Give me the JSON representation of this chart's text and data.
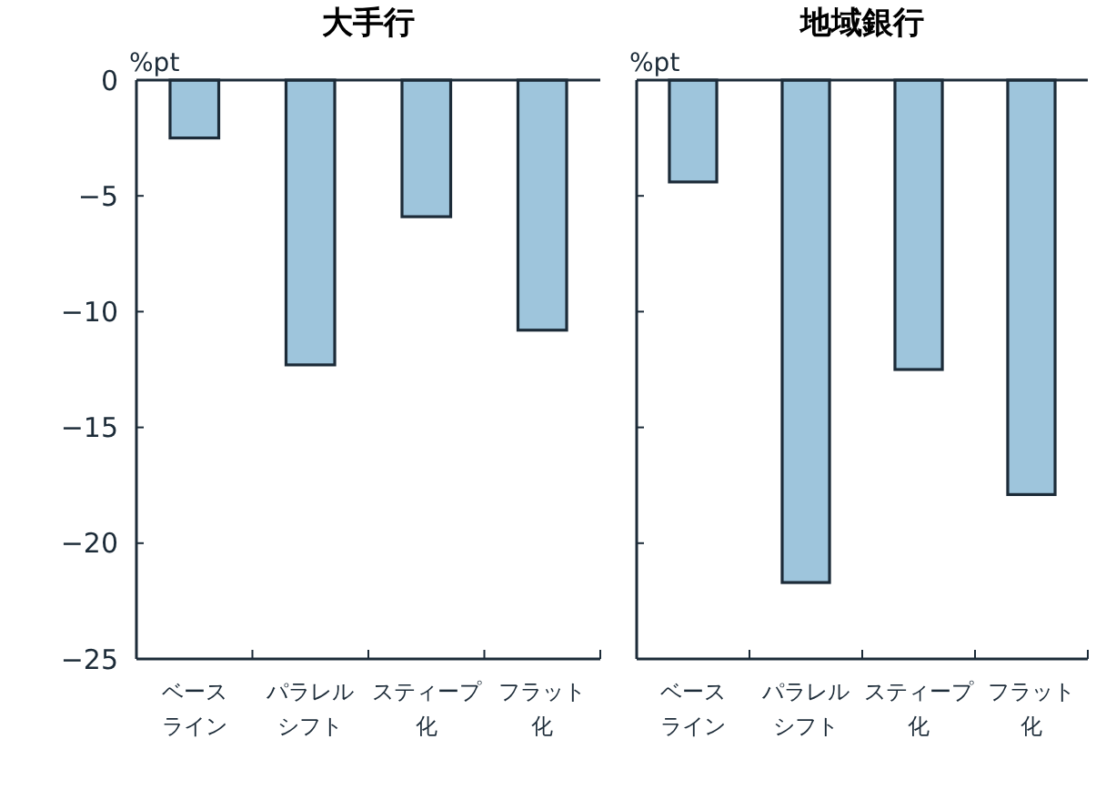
{
  "chart_data": [
    {
      "type": "bar",
      "title": "大手行",
      "ylabel": "%pt",
      "categories": [
        "ベースライン",
        "パラレルシフト",
        "スティープ化",
        "フラット化"
      ],
      "values": [
        -2.5,
        -12.3,
        -5.9,
        -10.8
      ],
      "color": "#9ec5dc",
      "ylim": [
        -25,
        0
      ],
      "yticks": [
        0,
        -5,
        -10,
        -15,
        -20,
        -25
      ],
      "grid": false
    },
    {
      "type": "bar",
      "title": "地域銀行",
      "ylabel": "%pt",
      "categories": [
        "ベースライン",
        "パラレルシフト",
        "スティープ化",
        "フラット化"
      ],
      "values": [
        -4.4,
        -21.7,
        -12.5,
        -17.9
      ],
      "color": "#9ec5dc",
      "ylim": [
        -25,
        0
      ],
      "yticks": [
        0,
        -5,
        -10,
        -15,
        -20,
        -25
      ],
      "tick_labels": "x",
      "grid": false
    }
  ]
}
